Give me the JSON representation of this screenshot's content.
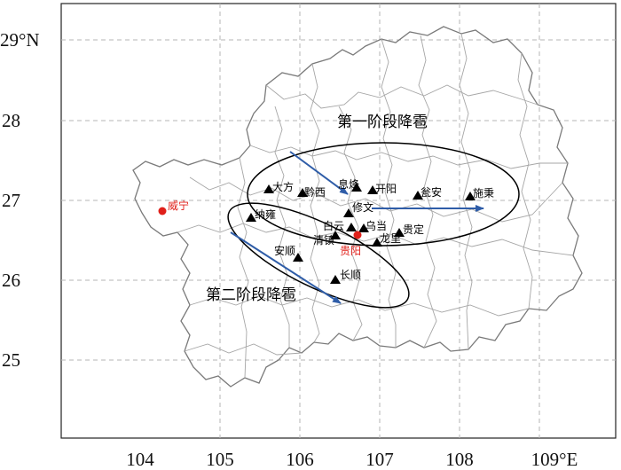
{
  "axes": {
    "x_ticks": [
      "104",
      "105",
      "106",
      "107",
      "108",
      "109°E"
    ],
    "y_ticks": [
      "29°N",
      "28",
      "27",
      "26",
      "25"
    ]
  },
  "regions": {
    "stage1": "第一阶段降雹",
    "stage2": "第二阶段降雹"
  },
  "stations": [
    {
      "id": "dafang",
      "label": "大方"
    },
    {
      "id": "qianxi",
      "label": "黔西"
    },
    {
      "id": "xifeng",
      "label": "息烽"
    },
    {
      "id": "kaiyang",
      "label": "开阳"
    },
    {
      "id": "wengan",
      "label": "瓮安"
    },
    {
      "id": "shibing",
      "label": "施秉"
    },
    {
      "id": "nayong",
      "label": "纳雍"
    },
    {
      "id": "xiuwen",
      "label": "修文"
    },
    {
      "id": "baiyun",
      "label": "白云"
    },
    {
      "id": "wudang",
      "label": "乌当"
    },
    {
      "id": "guiding",
      "label": "贵定"
    },
    {
      "id": "longli",
      "label": "龙里"
    },
    {
      "id": "qingzhen",
      "label": "清镇"
    },
    {
      "id": "anshun",
      "label": "安顺"
    },
    {
      "id": "changshun",
      "label": "长顺"
    }
  ],
  "red_cities": [
    {
      "id": "weining",
      "label": "威宁"
    },
    {
      "id": "guiyang",
      "label": "贵阳"
    }
  ],
  "colors": {
    "arrow": "#2f5da8",
    "red_city": "#e0201a",
    "border": "#8a8a8a",
    "grid": "#b5b5b5",
    "ellipse": "#000000"
  }
}
